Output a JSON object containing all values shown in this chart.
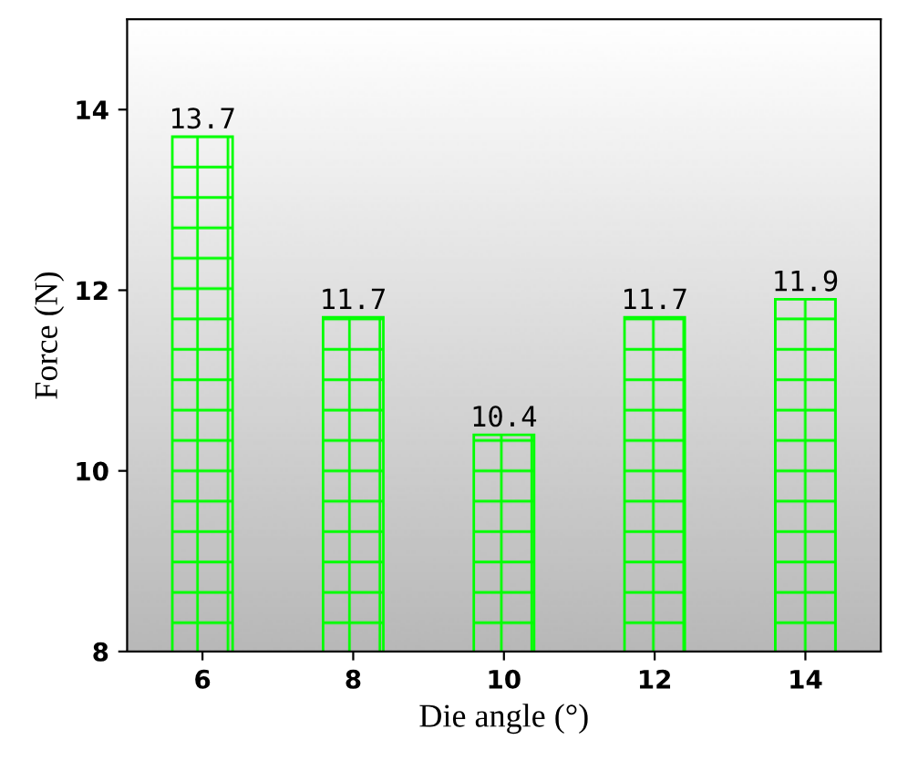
{
  "chart_data": {
    "type": "bar",
    "xlabel": "Die angle (°)",
    "ylabel": "Force (N)",
    "categories": [
      "6",
      "8",
      "10",
      "12",
      "14"
    ],
    "values": [
      13.7,
      11.7,
      10.4,
      11.7,
      11.9
    ],
    "color": "#00ff00",
    "ylim": [
      8,
      15
    ],
    "yticks": [
      8,
      10,
      12,
      14
    ],
    "grid": false,
    "legend": false,
    "data_labels": true
  }
}
